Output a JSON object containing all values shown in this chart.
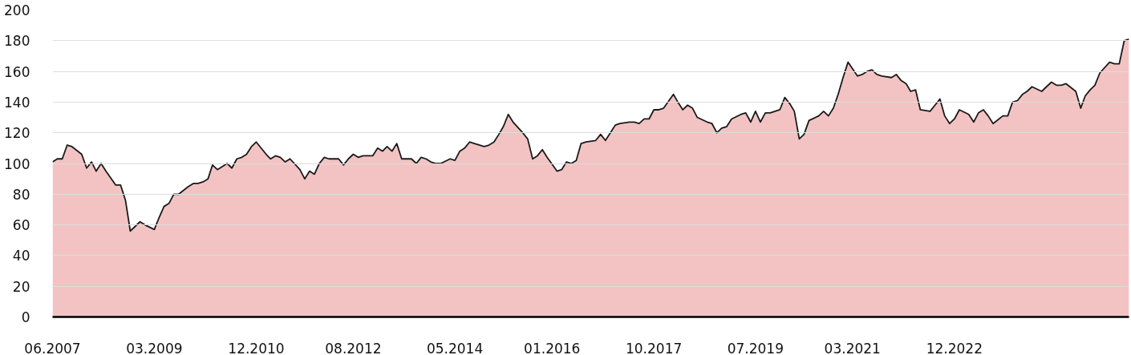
{
  "chart_data": {
    "type": "area",
    "x": [
      "2007-06",
      "2007-07",
      "2007-08",
      "2007-09",
      "2007-10",
      "2007-12",
      "2008-01",
      "2008-02",
      "2008-03",
      "2008-04",
      "2008-05",
      "2008-07",
      "2008-08",
      "2008-09",
      "2008-10",
      "2008-11",
      "2008-12",
      "2009-01",
      "2009-03",
      "2009-04",
      "2009-05",
      "2009-06",
      "2009-07",
      "2009-08",
      "2009-10",
      "2009-11",
      "2009-12",
      "2010-01",
      "2010-02",
      "2010-03",
      "2010-04",
      "2010-06",
      "2010-07",
      "2010-08",
      "2010-09",
      "2010-10",
      "2010-11",
      "2010-12",
      "2011-02",
      "2011-03",
      "2011-04",
      "2011-05",
      "2011-06",
      "2011-07",
      "2011-09",
      "2011-10",
      "2011-11",
      "2011-12",
      "2012-01",
      "2012-02",
      "2012-03",
      "2012-05",
      "2012-06",
      "2012-07",
      "2012-08",
      "2012-09",
      "2012-10",
      "2012-12",
      "2013-01",
      "2013-02",
      "2013-03",
      "2013-04",
      "2013-05",
      "2013-06",
      "2013-08",
      "2013-09",
      "2013-10",
      "2013-11",
      "2013-12",
      "2014-01",
      "2014-02",
      "2014-04",
      "2014-05",
      "2014-06",
      "2014-07",
      "2014-08",
      "2014-09",
      "2014-11",
      "2014-12",
      "2015-01",
      "2015-02",
      "2015-03",
      "2015-04",
      "2015-05",
      "2015-07",
      "2015-08",
      "2015-09",
      "2015-10",
      "2015-11",
      "2015-12",
      "2016-02",
      "2016-03",
      "2016-04",
      "2016-05",
      "2016-06",
      "2016-07",
      "2016-08",
      "2016-10",
      "2016-11",
      "2016-12",
      "2017-01",
      "2017-02",
      "2017-03",
      "2017-05",
      "2017-06",
      "2017-07",
      "2017-08",
      "2017-09",
      "2017-10",
      "2017-11",
      "2017-12",
      "2018-02",
      "2018-03",
      "2018-04",
      "2018-05",
      "2018-06",
      "2018-07",
      "2018-09",
      "2018-10",
      "2018-11",
      "2018-12",
      "2019-01",
      "2019-02",
      "2019-04",
      "2019-05",
      "2019-06",
      "2019-07",
      "2019-08",
      "2019-09",
      "2019-10",
      "2019-12",
      "2020-01",
      "2020-02",
      "2020-03",
      "2020-04",
      "2020-05",
      "2020-06",
      "2020-08",
      "2020-09",
      "2020-10",
      "2020-11",
      "2020-12",
      "2021-01",
      "2021-02",
      "2021-04",
      "2021-05",
      "2021-06",
      "2021-07",
      "2021-08",
      "2021-09",
      "2021-11",
      "2021-12",
      "2022-01",
      "2022-02",
      "2022-03",
      "2022-04",
      "2022-05",
      "2022-07",
      "2022-08",
      "2022-09",
      "2022-10",
      "2022-11",
      "2022-12",
      "2023-01",
      "2023-03",
      "2023-04",
      "2023-05",
      "2023-06",
      "2023-07",
      "2023-08",
      "2023-10",
      "2023-11",
      "2023-12",
      "2024-01",
      "2024-02",
      "2024-03",
      "2024-04",
      "2024-06",
      "2024-07",
      "2024-08",
      "2024-09",
      "2024-10",
      "2024-11",
      "2025-01",
      "2025-02",
      "2025-03",
      "2025-04",
      "2025-05",
      "2025-06",
      "2025-08",
      "2025-09",
      "2025-10",
      "2025-11",
      "2025-12"
    ],
    "series": [
      {
        "color": "#eeaaaa",
        "values": [
          101,
          103,
          103,
          112,
          111,
          106,
          97,
          101,
          95,
          100,
          95,
          86,
          86,
          76,
          56,
          59,
          62,
          60,
          57,
          65,
          72,
          74,
          80,
          80,
          85,
          87,
          87,
          88,
          90,
          99,
          96,
          100,
          97,
          103,
          104,
          106,
          111,
          114,
          106,
          103,
          105,
          104,
          101,
          103,
          96,
          90,
          95,
          93,
          100,
          104,
          103,
          103,
          99,
          103,
          106,
          104,
          105,
          105,
          110,
          108,
          111,
          108,
          113,
          103,
          103,
          100,
          104,
          103,
          101,
          100,
          100,
          103,
          102,
          108,
          110,
          114,
          113,
          111,
          112,
          114,
          119,
          124,
          132,
          127,
          120,
          116,
          103,
          105,
          109,
          104,
          95,
          96,
          101,
          100,
          102,
          113,
          114,
          115,
          119,
          115,
          120,
          125,
          126,
          127,
          127,
          126,
          129,
          129,
          135,
          135,
          136,
          145,
          140,
          135,
          138,
          136,
          130,
          127,
          126,
          120,
          123,
          124,
          129,
          132,
          133,
          127,
          134,
          127,
          133,
          133,
          135,
          143,
          139,
          134,
          116,
          119,
          128,
          131,
          134,
          131,
          136,
          145,
          156,
          166,
          157,
          158,
          160,
          161,
          158,
          157,
          156,
          158,
          154,
          152,
          147,
          148,
          135,
          134,
          138,
          142,
          131,
          126,
          129,
          135,
          132,
          127,
          133,
          135,
          131,
          126,
          131,
          131,
          140,
          141,
          145,
          147,
          150,
          147,
          150,
          153,
          151,
          151,
          152,
          147,
          136,
          144,
          148,
          151,
          159,
          166,
          165,
          165,
          180,
          181
        ]
      }
    ],
    "xlim": [
      "2007-06",
      "2025-12"
    ],
    "xticks": [
      {
        "value": "2007-06",
        "label": "06.2007"
      },
      {
        "value": "2009-03",
        "label": "03.2009"
      },
      {
        "value": "2010-12",
        "label": "12.2010"
      },
      {
        "value": "2012-08",
        "label": "08.2012"
      },
      {
        "value": "2014-05",
        "label": "05.2014"
      },
      {
        "value": "2016-01",
        "label": "01.2016"
      },
      {
        "value": "2017-10",
        "label": "10.2017"
      },
      {
        "value": "2019-07",
        "label": "07.2019"
      },
      {
        "value": "2021-03",
        "label": "03.2021"
      },
      {
        "value": "2022-12",
        "label": "12.2022"
      }
    ],
    "ylim": [
      0,
      200
    ],
    "yticks": [
      0,
      20,
      40,
      60,
      80,
      100,
      120,
      140,
      160,
      180,
      200
    ],
    "grid": "y"
  }
}
